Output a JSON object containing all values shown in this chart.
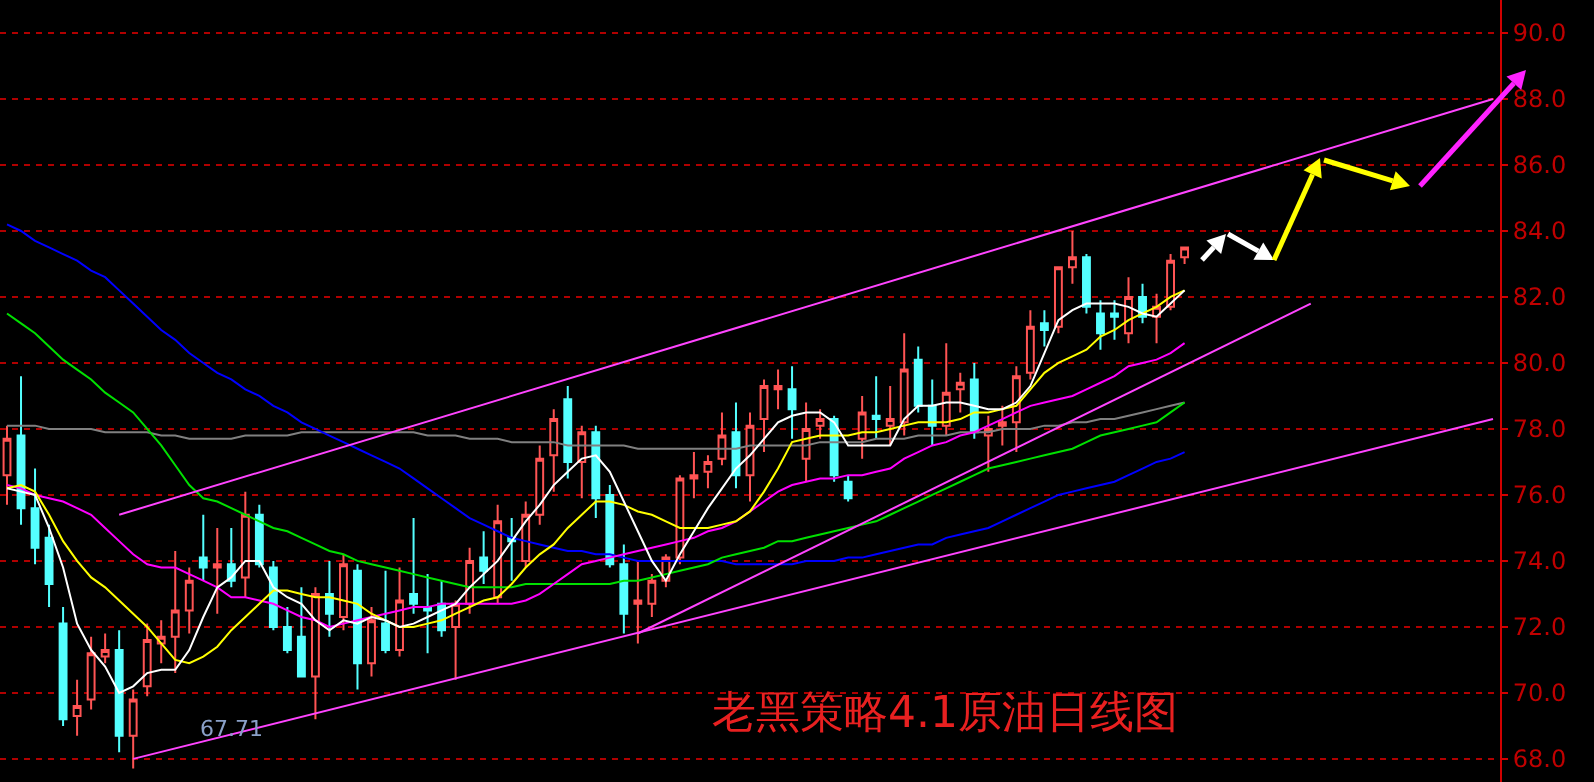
{
  "chart_data": {
    "type": "candlestick",
    "title": "老黑策略4.1原油日线图",
    "categories": [
      null,
      null,
      null,
      null,
      null,
      null,
      null,
      null,
      null,
      null,
      null,
      null,
      null,
      null,
      null,
      null,
      null,
      null,
      null,
      null,
      null,
      null,
      null,
      null,
      null,
      null,
      null,
      null,
      null,
      null,
      null,
      null,
      null,
      null,
      null,
      null,
      null,
      null,
      null,
      null,
      null,
      null,
      null,
      null,
      null,
      null,
      null,
      null,
      null,
      null,
      null,
      null,
      null,
      null,
      null,
      null,
      null,
      null,
      null,
      null,
      null,
      null,
      null,
      null,
      null,
      null,
      null,
      null,
      null,
      null,
      null,
      null,
      null,
      null,
      null,
      null,
      null,
      null,
      null,
      null,
      null,
      null,
      null,
      null,
      null,
      null,
      null,
      null,
      null,
      null,
      null,
      null,
      null,
      null,
      null,
      null,
      null,
      null,
      null,
      null,
      null,
      null,
      null,
      null,
      null,
      null,
      null
    ],
    "colors": [
      "#ff5454",
      "#54ffff",
      "#54ffff",
      "#54ffff",
      "#54ffff",
      "#ff5454",
      "#ff5454",
      "#ff5454",
      "#54ffff",
      "#ff5454",
      "#ff5454",
      "#ff5454",
      "#ff5454",
      "#ff5454",
      "#54ffff",
      "#ff5454",
      "#54ffff",
      "#ff5454",
      "#54ffff",
      "#54ffff",
      "#54ffff",
      "#54ffff",
      "#ff5454",
      "#54ffff",
      "#ff5454",
      "#54ffff",
      "#ff5454",
      "#54ffff",
      "#ff5454",
      "#54ffff",
      "#54ffff",
      "#54ffff",
      "#ff5454",
      "#ff5454",
      "#54ffff",
      "#ff5454",
      "#54ffff",
      "#ff5454",
      "#ff5454",
      "#ff5454",
      "#54ffff",
      "#ff5454",
      "#54ffff",
      "#54ffff",
      "#54ffff",
      "#ff5454",
      "#ff5454",
      "#ff5454",
      "#ff5454",
      "#ff5454",
      "#ff5454",
      "#ff5454",
      "#54ffff",
      "#ff5454",
      "#ff5454",
      "#ff5454",
      "#54ffff",
      "#ff5454",
      "#ff5454",
      "#54ffff",
      "#54ffff",
      "#ff5454",
      "#54ffff",
      "#ff5454",
      "#ff5454",
      "#54ffff",
      "#54ffff",
      "#ff5454",
      "#ff5454",
      "#54ffff",
      "#ff5454",
      "#ff5454",
      "#ff5454",
      "#ff5454",
      "#54ffff",
      "#ff5454",
      "#ff5454",
      "#54ffff",
      "#54ffff",
      "#54ffff",
      "#ff5454",
      "#54ffff",
      "#ff5454",
      "#ff5454",
      "#ff5454",
      null,
      null,
      null,
      null,
      null,
      null,
      null,
      null,
      null,
      null,
      null,
      null,
      null,
      null,
      null,
      null,
      null,
      null,
      null,
      null,
      null,
      null
    ],
    "ohlc": [
      [
        76.6,
        78.1,
        75.7,
        77.7
      ],
      [
        77.8,
        79.6,
        75.1,
        75.6
      ],
      [
        75.6,
        76.8,
        73.9,
        74.4
      ],
      [
        74.7,
        75.1,
        72.6,
        73.3
      ],
      [
        72.1,
        72.6,
        69.0,
        69.2
      ],
      [
        69.3,
        70.4,
        68.7,
        69.6
      ],
      [
        69.8,
        71.7,
        69.5,
        71.2
      ],
      [
        71.1,
        71.8,
        70.9,
        71.3
      ],
      [
        71.3,
        71.9,
        68.2,
        68.7
      ],
      [
        68.7,
        70.1,
        67.71,
        69.8
      ],
      [
        70.2,
        72.1,
        69.9,
        71.6
      ],
      [
        71.5,
        72.2,
        70.9,
        71.7
      ],
      [
        71.7,
        74.3,
        70.6,
        72.5
      ],
      [
        72.5,
        73.8,
        71.8,
        73.4
      ],
      [
        74.1,
        75.4,
        73.4,
        73.8
      ],
      [
        73.8,
        75.0,
        72.4,
        73.9
      ],
      [
        73.9,
        75.0,
        73.2,
        73.4
      ],
      [
        73.5,
        76.1,
        72.9,
        75.4
      ],
      [
        75.4,
        75.7,
        73.8,
        73.9
      ],
      [
        73.8,
        74.0,
        71.9,
        72.0
      ],
      [
        72.0,
        72.6,
        71.2,
        71.3
      ],
      [
        71.7,
        73.2,
        70.5,
        70.5
      ],
      [
        70.5,
        73.2,
        69.2,
        73.0
      ],
      [
        73.0,
        74.0,
        71.7,
        72.4
      ],
      [
        72.3,
        74.2,
        71.9,
        73.9
      ],
      [
        73.7,
        73.9,
        70.1,
        70.9
      ],
      [
        70.9,
        72.6,
        70.5,
        72.2
      ],
      [
        72.1,
        73.7,
        71.2,
        71.3
      ],
      [
        71.3,
        73.8,
        71.1,
        72.8
      ],
      [
        73.0,
        75.3,
        72.4,
        72.7
      ],
      [
        72.6,
        73.6,
        71.2,
        72.5
      ],
      [
        72.7,
        73.4,
        71.7,
        71.9
      ],
      [
        72.0,
        72.8,
        70.4,
        72.7
      ],
      [
        72.7,
        74.4,
        72.4,
        74.0
      ],
      [
        74.1,
        74.9,
        73.3,
        73.7
      ],
      [
        72.9,
        75.7,
        72.7,
        75.2
      ],
      [
        74.7,
        75.3,
        73.4,
        74.6
      ],
      [
        74.0,
        75.8,
        73.8,
        75.4
      ],
      [
        75.4,
        77.5,
        75.1,
        77.1
      ],
      [
        77.2,
        78.6,
        76.1,
        78.3
      ],
      [
        78.9,
        79.3,
        76.5,
        77.0
      ],
      [
        77.0,
        78.1,
        75.9,
        77.9
      ],
      [
        77.9,
        78.1,
        75.3,
        75.9
      ],
      [
        76.0,
        76.3,
        73.8,
        73.9
      ],
      [
        73.9,
        74.5,
        71.8,
        72.4
      ],
      [
        72.7,
        74.0,
        71.5,
        72.8
      ],
      [
        72.7,
        73.6,
        72.3,
        73.4
      ],
      [
        73.4,
        74.2,
        73.2,
        74.1
      ],
      [
        74.1,
        76.6,
        73.9,
        76.5
      ],
      [
        76.5,
        77.3,
        75.9,
        76.6
      ],
      [
        76.7,
        77.2,
        76.2,
        77.0
      ],
      [
        77.1,
        78.5,
        76.9,
        77.8
      ],
      [
        77.9,
        78.8,
        76.2,
        76.6
      ],
      [
        76.6,
        78.5,
        75.8,
        78.1
      ],
      [
        78.3,
        79.5,
        77.3,
        79.3
      ],
      [
        79.2,
        79.8,
        78.6,
        79.3
      ],
      [
        79.2,
        79.9,
        77.7,
        78.6
      ],
      [
        77.1,
        78.8,
        76.4,
        78.0
      ],
      [
        78.1,
        78.6,
        77.7,
        78.3
      ],
      [
        78.3,
        78.4,
        76.4,
        76.6
      ],
      [
        76.4,
        76.6,
        75.8,
        75.9
      ],
      [
        77.7,
        79.0,
        77.1,
        78.5
      ],
      [
        78.4,
        79.6,
        77.7,
        78.3
      ],
      [
        78.1,
        79.3,
        77.5,
        78.3
      ],
      [
        78.2,
        80.9,
        77.8,
        79.8
      ],
      [
        80.1,
        80.5,
        78.5,
        78.7
      ],
      [
        78.7,
        79.5,
        77.5,
        78.1
      ],
      [
        78.1,
        80.6,
        77.8,
        79.1
      ],
      [
        79.2,
        79.7,
        78.5,
        79.4
      ],
      [
        79.5,
        80.0,
        77.7,
        77.9
      ],
      [
        77.8,
        78.4,
        76.7,
        78.0
      ],
      [
        78.1,
        78.7,
        77.5,
        78.2
      ],
      [
        78.2,
        79.9,
        77.3,
        79.6
      ],
      [
        79.7,
        81.6,
        79.5,
        81.1
      ],
      [
        81.2,
        81.6,
        80.5,
        81.0
      ],
      [
        81.1,
        82.9,
        80.9,
        82.9
      ],
      [
        82.9,
        84.0,
        82.4,
        83.2
      ],
      [
        83.2,
        83.3,
        81.5,
        81.7
      ],
      [
        81.5,
        81.9,
        80.4,
        80.9
      ],
      [
        81.5,
        81.9,
        80.7,
        81.4
      ],
      [
        80.9,
        82.6,
        80.6,
        82.0
      ],
      [
        82.0,
        82.4,
        81.2,
        81.4
      ],
      [
        81.4,
        82.1,
        80.6,
        81.7
      ],
      [
        81.7,
        83.3,
        81.6,
        83.1
      ],
      [
        83.2,
        83.5,
        83.0,
        83.5
      ],
      null,
      null,
      null,
      null,
      null,
      null,
      null,
      null,
      null,
      null,
      null,
      null,
      null,
      null,
      null,
      null,
      null,
      null,
      null,
      null,
      null,
      null
    ],
    "series": [
      {
        "type": "line",
        "color": "#808080",
        "values": [
          78.1,
          78.1,
          78.1,
          78.0,
          78.0,
          78.0,
          78.0,
          77.9,
          77.9,
          77.9,
          77.9,
          77.8,
          77.8,
          77.7,
          77.7,
          77.7,
          77.7,
          77.8,
          77.8,
          77.8,
          77.8,
          77.9,
          77.9,
          77.9,
          77.9,
          77.9,
          77.9,
          77.9,
          77.9,
          77.9,
          77.8,
          77.8,
          77.8,
          77.7,
          77.7,
          77.7,
          77.6,
          77.6,
          77.6,
          77.6,
          77.5,
          77.5,
          77.5,
          77.5,
          77.5,
          77.4,
          77.4,
          77.4,
          77.4,
          77.4,
          77.4,
          77.4,
          77.4,
          77.5,
          77.5,
          77.5,
          77.5,
          77.5,
          77.6,
          77.6,
          77.6,
          77.6,
          77.7,
          77.7,
          77.7,
          77.8,
          77.8,
          77.8,
          77.9,
          77.9,
          77.9,
          78.0,
          78.0,
          78.0,
          78.1,
          78.1,
          78.2,
          78.2,
          78.3,
          78.3,
          78.4,
          78.5,
          78.6,
          78.7,
          78.8,
          null,
          null,
          null,
          null,
          null,
          null,
          null,
          null,
          null,
          null,
          null,
          null,
          null,
          null,
          null,
          null,
          null,
          null,
          null,
          null,
          null,
          null
        ]
      },
      {
        "type": "line",
        "color": "#0000ff",
        "values": [
          84.2,
          84.0,
          83.7,
          83.5,
          83.3,
          83.1,
          82.8,
          82.6,
          82.2,
          81.8,
          81.4,
          81.0,
          80.7,
          80.3,
          80.0,
          79.7,
          79.5,
          79.2,
          79.0,
          78.7,
          78.5,
          78.2,
          78.0,
          77.8,
          77.6,
          77.4,
          77.2,
          77.0,
          76.8,
          76.5,
          76.2,
          75.9,
          75.6,
          75.3,
          75.1,
          74.9,
          74.7,
          74.6,
          74.5,
          74.4,
          74.3,
          74.3,
          74.2,
          74.2,
          74.1,
          74.0,
          74.0,
          74.0,
          74.0,
          74.0,
          74.0,
          74.0,
          73.9,
          73.9,
          73.9,
          73.9,
          73.9,
          74.0,
          74.0,
          74.0,
          74.1,
          74.1,
          74.2,
          74.3,
          74.4,
          74.5,
          74.5,
          74.7,
          74.8,
          74.9,
          75.0,
          75.2,
          75.4,
          75.6,
          75.8,
          76.0,
          76.1,
          76.2,
          76.3,
          76.4,
          76.6,
          76.8,
          77.0,
          77.1,
          77.3,
          null,
          null,
          null,
          null,
          null,
          null,
          null,
          null,
          null,
          null,
          null,
          null,
          null,
          null,
          null,
          null,
          null,
          null,
          null,
          null,
          null,
          null
        ]
      },
      {
        "type": "line",
        "color": "#00e000",
        "values": [
          81.5,
          81.2,
          80.9,
          80.5,
          80.1,
          79.8,
          79.5,
          79.1,
          78.8,
          78.5,
          78.0,
          77.5,
          76.9,
          76.3,
          75.9,
          75.8,
          75.6,
          75.4,
          75.2,
          75.0,
          74.9,
          74.7,
          74.5,
          74.3,
          74.2,
          74.0,
          73.9,
          73.8,
          73.7,
          73.6,
          73.5,
          73.4,
          73.3,
          73.2,
          73.2,
          73.2,
          73.2,
          73.3,
          73.3,
          73.3,
          73.3,
          73.3,
          73.3,
          73.3,
          73.4,
          73.4,
          73.5,
          73.6,
          73.7,
          73.8,
          73.9,
          74.1,
          74.2,
          74.3,
          74.4,
          74.6,
          74.6,
          74.7,
          74.8,
          74.9,
          75.0,
          75.1,
          75.2,
          75.4,
          75.6,
          75.8,
          76.0,
          76.2,
          76.4,
          76.6,
          76.8,
          76.9,
          77.0,
          77.1,
          77.2,
          77.3,
          77.4,
          77.6,
          77.8,
          77.9,
          78.0,
          78.1,
          78.2,
          78.5,
          78.8,
          null,
          null,
          null,
          null,
          null,
          null,
          null,
          null,
          null,
          null,
          null,
          null,
          null,
          null,
          null,
          null,
          null,
          null,
          null,
          null,
          null,
          null
        ]
      },
      {
        "type": "line",
        "color": "#ff00ff",
        "values": [
          76.3,
          76.2,
          76.0,
          75.9,
          75.8,
          75.6,
          75.4,
          75.0,
          74.6,
          74.2,
          73.9,
          73.8,
          73.8,
          73.6,
          73.4,
          73.2,
          72.9,
          72.9,
          72.8,
          72.7,
          72.5,
          72.3,
          72.2,
          72.0,
          72.1,
          72.2,
          72.3,
          72.4,
          72.5,
          72.6,
          72.6,
          72.7,
          72.7,
          72.7,
          72.7,
          72.7,
          72.7,
          72.8,
          73.0,
          73.3,
          73.6,
          73.9,
          74.0,
          74.1,
          74.2,
          74.3,
          74.4,
          74.5,
          74.6,
          74.7,
          74.9,
          75.0,
          75.2,
          75.5,
          75.8,
          76.1,
          76.3,
          76.4,
          76.5,
          76.5,
          76.6,
          76.6,
          76.7,
          76.8,
          77.1,
          77.3,
          77.5,
          77.6,
          77.8,
          77.9,
          78.1,
          78.3,
          78.5,
          78.7,
          78.8,
          78.9,
          79.0,
          79.2,
          79.4,
          79.6,
          79.9,
          80.0,
          80.1,
          80.3,
          80.6,
          null,
          null,
          null,
          null,
          null,
          null,
          null,
          null,
          null,
          null,
          null,
          null,
          null,
          null,
          null,
          null,
          null,
          null,
          null,
          null,
          null,
          null
        ]
      },
      {
        "type": "line",
        "color": "#ffff00",
        "values": [
          76.2,
          76.3,
          76.1,
          75.4,
          74.6,
          74.0,
          73.5,
          73.2,
          72.8,
          72.4,
          72.0,
          71.5,
          71.0,
          70.9,
          71.1,
          71.4,
          71.9,
          72.3,
          72.7,
          73.1,
          73.1,
          73.0,
          72.9,
          72.9,
          72.8,
          72.7,
          72.4,
          72.2,
          72.0,
          72.0,
          72.1,
          72.2,
          72.4,
          72.6,
          72.8,
          72.9,
          73.3,
          73.8,
          74.2,
          74.5,
          75.0,
          75.4,
          75.8,
          75.8,
          75.7,
          75.5,
          75.4,
          75.2,
          75.0,
          75.0,
          75.0,
          75.1,
          75.2,
          75.5,
          76.1,
          76.8,
          77.6,
          77.7,
          77.8,
          77.8,
          77.8,
          77.9,
          77.9,
          78.0,
          78.1,
          78.2,
          78.2,
          78.2,
          78.3,
          78.5,
          78.5,
          78.6,
          78.7,
          79.2,
          79.7,
          80.0,
          80.2,
          80.4,
          80.8,
          81.0,
          81.3,
          81.5,
          81.7,
          82.0,
          82.2,
          null,
          null,
          null,
          null,
          null,
          null,
          null,
          null,
          null,
          null,
          null,
          null,
          null,
          null,
          null,
          null,
          null,
          null,
          null,
          null,
          null,
          null
        ]
      },
      {
        "type": "line",
        "color": "#ffffff",
        "values": [
          76.2,
          76.1,
          76.0,
          75.0,
          73.8,
          72.1,
          71.3,
          70.8,
          70.0,
          70.2,
          70.6,
          70.7,
          70.7,
          71.3,
          72.3,
          73.2,
          73.5,
          74.0,
          74.0,
          73.2,
          72.9,
          72.7,
          72.2,
          71.9,
          72.2,
          72.1,
          72.3,
          72.2,
          72.0,
          72.1,
          72.3,
          72.5,
          72.7,
          73.2,
          73.6,
          74.0,
          74.6,
          75.2,
          75.7,
          76.3,
          76.7,
          77.1,
          77.2,
          76.7,
          75.8,
          74.9,
          74.0,
          73.4,
          74.2,
          74.9,
          75.6,
          76.2,
          76.8,
          77.2,
          77.7,
          78.2,
          78.4,
          78.5,
          78.5,
          78.2,
          77.5,
          77.5,
          77.5,
          77.5,
          78.3,
          78.7,
          78.7,
          78.8,
          78.8,
          78.7,
          78.6,
          78.6,
          78.8,
          79.3,
          80.3,
          81.3,
          81.6,
          81.8,
          81.8,
          81.8,
          81.7,
          81.5,
          81.4,
          81.8,
          82.2,
          null,
          null,
          null,
          null,
          null,
          null,
          null,
          null,
          null,
          null,
          null,
          null,
          null,
          null,
          null,
          null,
          null,
          null,
          null,
          null,
          null,
          null
        ]
      },
      {
        "type": "line",
        "color": "#ff44ff",
        "values": [
          null,
          null,
          null,
          null,
          null,
          null,
          null,
          null,
          75.4,
          null,
          null,
          null,
          null,
          null,
          null,
          null,
          null,
          null,
          null,
          null,
          null,
          null,
          null,
          null,
          null,
          null,
          null,
          null,
          null,
          null,
          null,
          null,
          null,
          null,
          null,
          null,
          null,
          null,
          null,
          null,
          null,
          null,
          null,
          null,
          null,
          null,
          null,
          null,
          null,
          null,
          null,
          null,
          null,
          null,
          null,
          null,
          null,
          null,
          null,
          null,
          null,
          null,
          null,
          null,
          null,
          null,
          null,
          null,
          null,
          null,
          null,
          null,
          null,
          null,
          null,
          null,
          null,
          null,
          null,
          null,
          null,
          null,
          null,
          null,
          null,
          null,
          null,
          null,
          null,
          null,
          null,
          null,
          null,
          null,
          null,
          null,
          null,
          null,
          null,
          null,
          null,
          null,
          null,
          null,
          null,
          null,
          88.0
        ]
      },
      {
        "type": "line",
        "color": "#ff44ff",
        "values": [
          null,
          null,
          null,
          null,
          null,
          null,
          null,
          null,
          null,
          null,
          null,
          null,
          null,
          null,
          null,
          null,
          null,
          null,
          null,
          null,
          null,
          null,
          null,
          null,
          null,
          null,
          null,
          null,
          null,
          null,
          null,
          null,
          null,
          null,
          null,
          null,
          null,
          null,
          null,
          null,
          null,
          null,
          null,
          null,
          null,
          71.8,
          null,
          null,
          null,
          null,
          null,
          null,
          null,
          null,
          null,
          null,
          null,
          null,
          null,
          null,
          null,
          null,
          null,
          null,
          null,
          null,
          null,
          null,
          null,
          null,
          null,
          null,
          null,
          null,
          null,
          null,
          null,
          null,
          null,
          null,
          null,
          null,
          null,
          null,
          null,
          null,
          null,
          null,
          null,
          null,
          null,
          null,
          null,
          81.8,
          null,
          null,
          null,
          null,
          null,
          null,
          null,
          null,
          null,
          null,
          null,
          null,
          null
        ]
      },
      {
        "type": "line",
        "color": "#ff44ff",
        "values": [
          null,
          null,
          null,
          null,
          null,
          null,
          null,
          null,
          null,
          68.0,
          null,
          null,
          null,
          null,
          null,
          null,
          null,
          null,
          null,
          null,
          null,
          null,
          null,
          null,
          null,
          null,
          null,
          null,
          null,
          null,
          null,
          null,
          null,
          null,
          null,
          null,
          null,
          null,
          null,
          null,
          null,
          null,
          null,
          null,
          null,
          null,
          null,
          null,
          null,
          null,
          null,
          null,
          null,
          null,
          null,
          null,
          null,
          null,
          null,
          null,
          null,
          null,
          null,
          null,
          null,
          null,
          null,
          null,
          null,
          null,
          null,
          null,
          null,
          null,
          null,
          null,
          null,
          null,
          null,
          null,
          null,
          null,
          null,
          null,
          null,
          null,
          null,
          null,
          null,
          null,
          null,
          null,
          null,
          null,
          null,
          null,
          null,
          null,
          null,
          null,
          null,
          null,
          null,
          null,
          null,
          null,
          78.3
        ]
      }
    ],
    "ylim": [
      67.3,
      91.0
    ],
    "yticks": [
      {
        "value": 68,
        "label": "68.0"
      },
      {
        "value": 70,
        "label": "70.0"
      },
      {
        "value": 72,
        "label": "72.0"
      },
      {
        "value": 74,
        "label": "74.0"
      },
      {
        "value": 76,
        "label": "76.0"
      },
      {
        "value": 78,
        "label": "78.0"
      },
      {
        "value": 80,
        "label": "80.0"
      },
      {
        "value": 82,
        "label": "82.0"
      },
      {
        "value": 84,
        "label": "84.0"
      },
      {
        "value": 86,
        "label": "86.0"
      },
      {
        "value": 88,
        "label": "88.0"
      },
      {
        "value": 90,
        "label": "90.0"
      }
    ],
    "grid": "y",
    "tick_labels": "y",
    "annotations": [
      "67.71"
    ]
  }
}
